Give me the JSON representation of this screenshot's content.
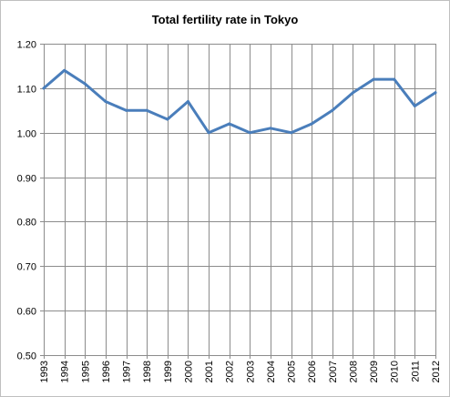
{
  "chart_data": {
    "type": "line",
    "title": "Total fertility rate in Tokyo",
    "xlabel": "",
    "ylabel": "",
    "categories": [
      "1993",
      "1994",
      "1995",
      "1996",
      "1997",
      "1998",
      "1999",
      "2000",
      "2001",
      "2002",
      "2003",
      "2004",
      "2005",
      "2006",
      "2007",
      "2008",
      "2009",
      "2010",
      "2011",
      "2012"
    ],
    "series": [
      {
        "values": [
          1.1,
          1.14,
          1.11,
          1.07,
          1.05,
          1.05,
          1.03,
          1.07,
          1.0,
          1.02,
          1.0,
          1.01,
          1.0,
          1.02,
          1.05,
          1.09,
          1.12,
          1.12,
          1.06,
          1.09
        ],
        "color": "#4a7ebb"
      }
    ],
    "ylim": [
      0.5,
      1.2
    ],
    "yticks": [
      "0.50",
      "0.60",
      "0.70",
      "0.80",
      "0.90",
      "1.00",
      "1.10",
      "1.20"
    ],
    "ytick_values": [
      0.5,
      0.6,
      0.7,
      0.8,
      0.9,
      1.0,
      1.1,
      1.2
    ],
    "grid": true,
    "legend": "none"
  }
}
